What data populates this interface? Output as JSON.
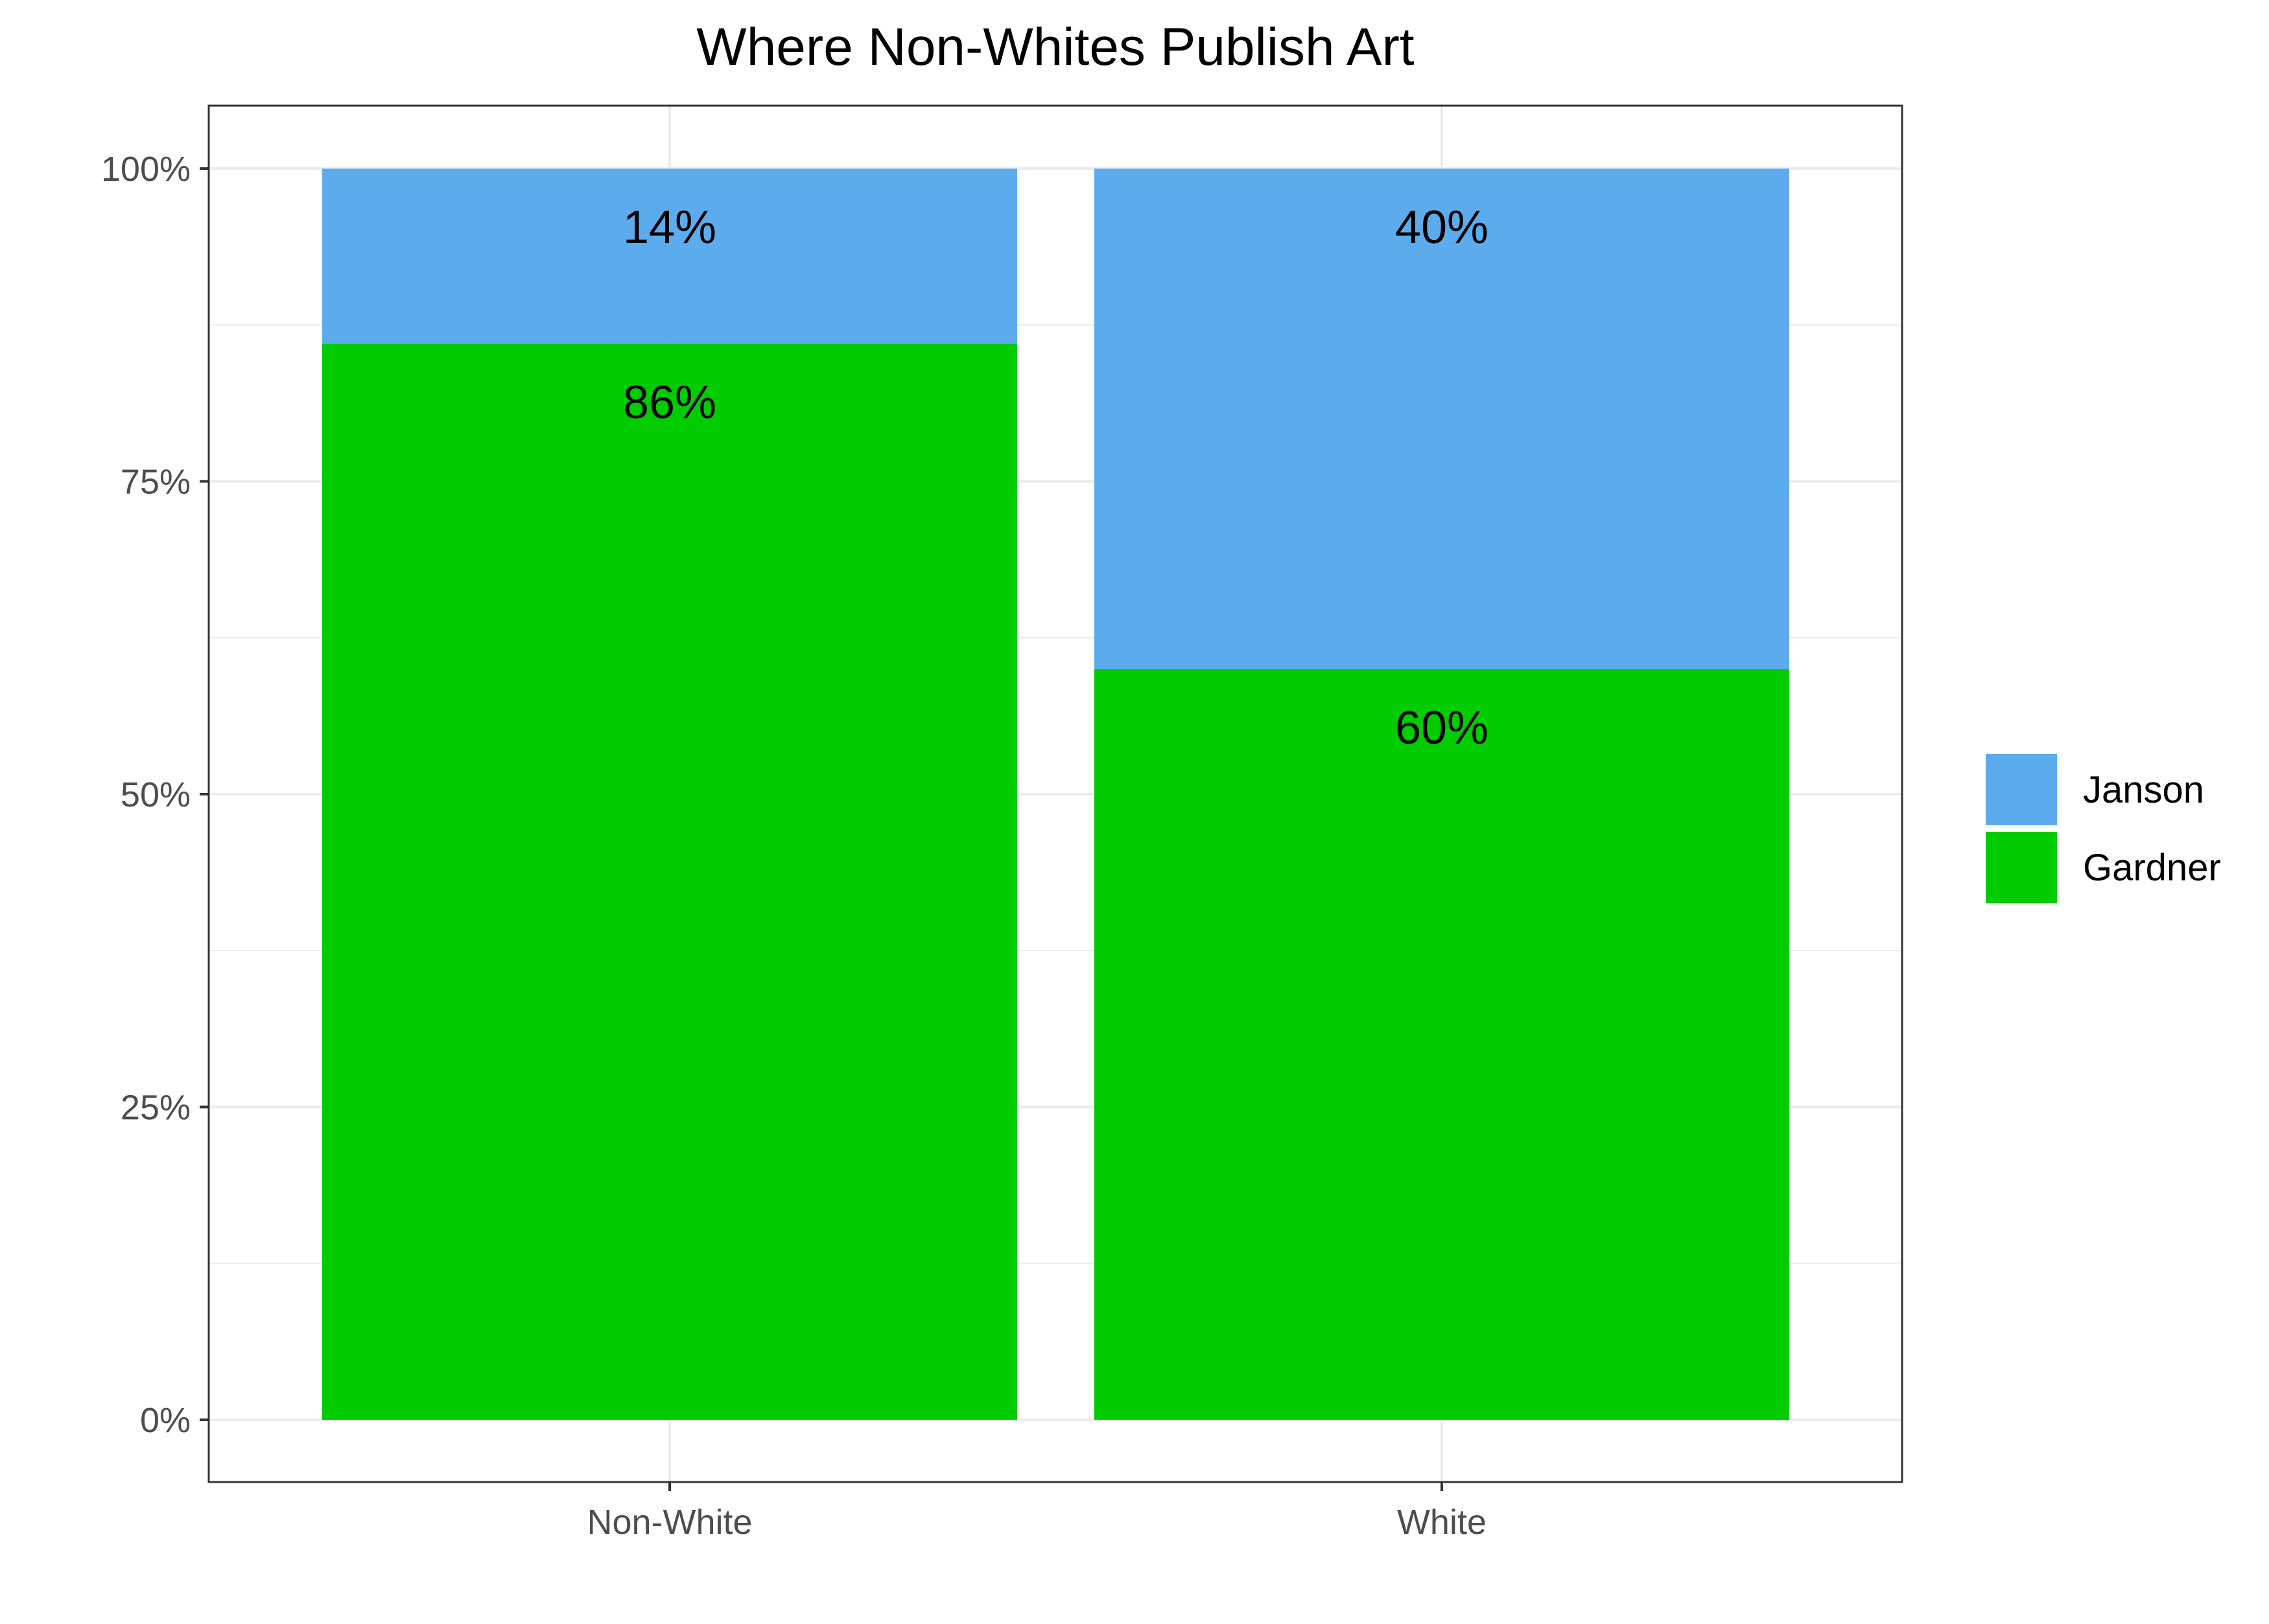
{
  "chart_data": {
    "type": "bar",
    "stacked": true,
    "title": "Where Non-Whites Publish Art",
    "xlabel": "",
    "ylabel": "",
    "categories": [
      "Non-White",
      "White"
    ],
    "series": [
      {
        "name": "Gardner",
        "values": [
          0.86,
          0.6
        ],
        "labels": [
          "86%",
          "60%"
        ],
        "color": "#00cc00"
      },
      {
        "name": "Janson",
        "values": [
          0.14,
          0.4
        ],
        "labels": [
          "14%",
          "40%"
        ],
        "color": "#5caced"
      }
    ],
    "legend_order": [
      "Janson",
      "Gardner"
    ],
    "ylim": [
      0,
      1
    ],
    "y_ticks": [
      0,
      0.25,
      0.5,
      0.75,
      1.0
    ],
    "y_tick_labels": [
      "0%",
      "25%",
      "50%",
      "75%",
      "100%"
    ],
    "grid": true,
    "legend_position": "right",
    "theme": "bw"
  }
}
